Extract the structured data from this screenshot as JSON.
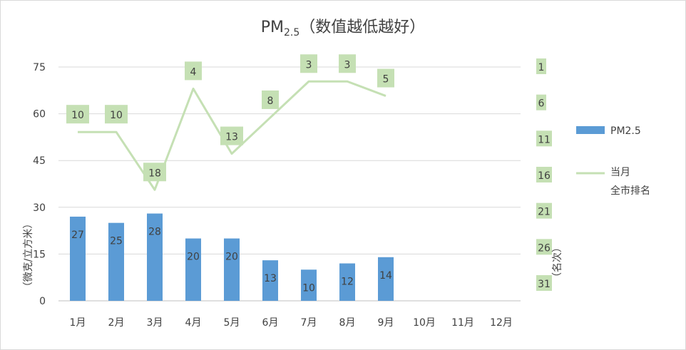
{
  "chart_data": {
    "type": "bar",
    "title": {
      "main": "PM",
      "sub": "2.5",
      "rest": "（数值越低越好）"
    },
    "categories": [
      "1月",
      "2月",
      "3月",
      "4月",
      "5月",
      "6月",
      "7月",
      "8月",
      "9月",
      "10月",
      "11月",
      "12月"
    ],
    "series": [
      {
        "name": "PM2.5",
        "type": "bar",
        "axis": "left",
        "color": "#5b9bd5",
        "values": [
          27,
          25,
          28,
          20,
          20,
          13,
          10,
          12,
          14,
          null,
          null,
          null
        ]
      },
      {
        "name": "当月全市排名",
        "legend_lines": [
          "当月",
          "全市排名"
        ],
        "type": "line",
        "axis": "right",
        "color": "#c5e0b4",
        "values": [
          10,
          10,
          18,
          4,
          13,
          8,
          3,
          3,
          5,
          null,
          null,
          null
        ]
      }
    ],
    "ylabel": "（微克/立方米）",
    "y2label": "（名次）",
    "ylim": [
      0,
      75
    ],
    "yticks": [
      0,
      15,
      30,
      45,
      60,
      75
    ],
    "y2lim": [
      1,
      31
    ],
    "y2_reversed": true,
    "y2ticks": [
      1,
      6,
      11,
      16,
      21,
      26,
      31
    ],
    "grid": true,
    "legend_position": "right"
  }
}
